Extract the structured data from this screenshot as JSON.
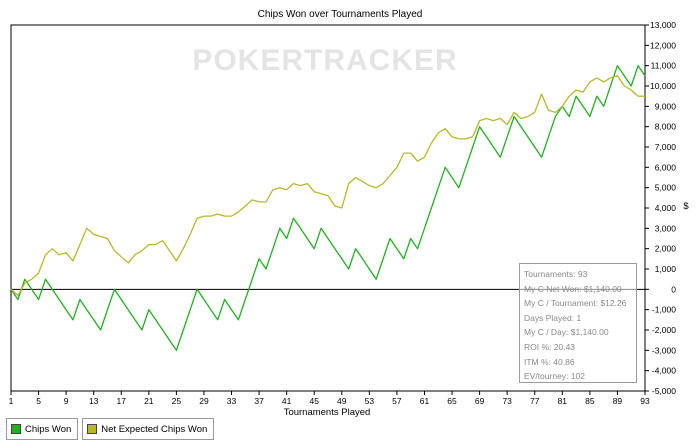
{
  "chart_data": {
    "type": "line",
    "title": "Chips Won over Tournaments Played",
    "xlabel": "Tournaments Played",
    "ylabel": "$",
    "xlim": [
      1,
      93
    ],
    "ylim": [
      -5000,
      13000
    ],
    "x_ticks": [
      1,
      5,
      9,
      13,
      17,
      21,
      25,
      29,
      33,
      37,
      41,
      45,
      49,
      53,
      57,
      61,
      65,
      69,
      73,
      77,
      81,
      85,
      89,
      93
    ],
    "y_ticks": [
      -5000,
      -4000,
      -3000,
      -2000,
      -1000,
      0,
      1000,
      2000,
      3000,
      4000,
      5000,
      6000,
      7000,
      8000,
      9000,
      10000,
      11000,
      12000,
      13000
    ],
    "y_tick_labels": [
      "-5,000",
      "-4,000",
      "-3,000",
      "-2,000",
      "-1,000",
      "0",
      "1,000",
      "2,000",
      "3,000",
      "4,000",
      "5,000",
      "6,000",
      "7,000",
      "8,000",
      "9,000",
      "10,000",
      "11,000",
      "12,000",
      "13,000"
    ],
    "series": [
      {
        "name": "Chips Won",
        "color": "#22b022",
        "values": [
          0,
          -500,
          500,
          0,
          -500,
          500,
          0,
          -500,
          -1000,
          -1500,
          -500,
          -1000,
          -1500,
          -2000,
          -1000,
          0,
          -500,
          -1000,
          -1500,
          -2000,
          -1000,
          -1500,
          -2000,
          -2500,
          -3000,
          -2000,
          -1000,
          0,
          -500,
          -1000,
          -1500,
          -500,
          -1000,
          -1500,
          -500,
          500,
          1500,
          1000,
          2000,
          3000,
          2500,
          3500,
          3000,
          2500,
          2000,
          3000,
          2500,
          2000,
          1500,
          1000,
          2000,
          1500,
          1000,
          500,
          1500,
          2500,
          2000,
          1500,
          2500,
          2000,
          3000,
          4000,
          5000,
          6000,
          5500,
          5000,
          6000,
          7000,
          8000,
          7500,
          7000,
          6500,
          7500,
          8500,
          8000,
          7500,
          7000,
          6500,
          7500,
          8500,
          9000,
          8500,
          9500,
          9000,
          8500,
          9500,
          9000,
          10000,
          11000,
          10500,
          10000,
          11000,
          10500
        ]
      },
      {
        "name": "Net Expected Chips Won",
        "color": "#b8b82a",
        "values": [
          0,
          -300,
          300,
          500,
          800,
          1700,
          2000,
          1700,
          1800,
          1400,
          2200,
          3000,
          2700,
          2600,
          2500,
          1900,
          1600,
          1300,
          1700,
          1900,
          2200,
          2200,
          2400,
          1900,
          1400,
          2000,
          2700,
          3500,
          3600,
          3600,
          3700,
          3600,
          3600,
          3800,
          4100,
          4400,
          4300,
          4300,
          4900,
          5000,
          4900,
          5200,
          5100,
          5200,
          4800,
          4700,
          4600,
          4100,
          4000,
          5200,
          5500,
          5300,
          5100,
          5000,
          5200,
          5600,
          6000,
          6700,
          6700,
          6300,
          6500,
          7200,
          7700,
          7900,
          7500,
          7400,
          7400,
          7500,
          8300,
          8400,
          8300,
          8400,
          8100,
          8700,
          8400,
          8500,
          8700,
          9600,
          8800,
          8700,
          9000,
          9500,
          9800,
          9700,
          10200,
          10400,
          10200,
          10400,
          10500,
          10000,
          9800,
          9500,
          9500
        ]
      }
    ],
    "watermark": "POKERTRACKER",
    "legend_position": "bottom-left",
    "grid": false
  },
  "stats": [
    "Tournaments: 93",
    "My C Net Won: $1,140.00",
    "My C / Tournament: $12.26",
    "Days Played: 1",
    "My C / Day: $1,140.00",
    "ROI %: 20.43",
    "ITM %: 40.86",
    "EV/tourney: 102"
  ],
  "legend": {
    "chips_won": "Chips Won",
    "net_expected": "Net Expected Chips Won"
  },
  "colors": {
    "chips_won": "#22b022",
    "net_expected": "#b8b82a",
    "zero_line": "#000000"
  }
}
